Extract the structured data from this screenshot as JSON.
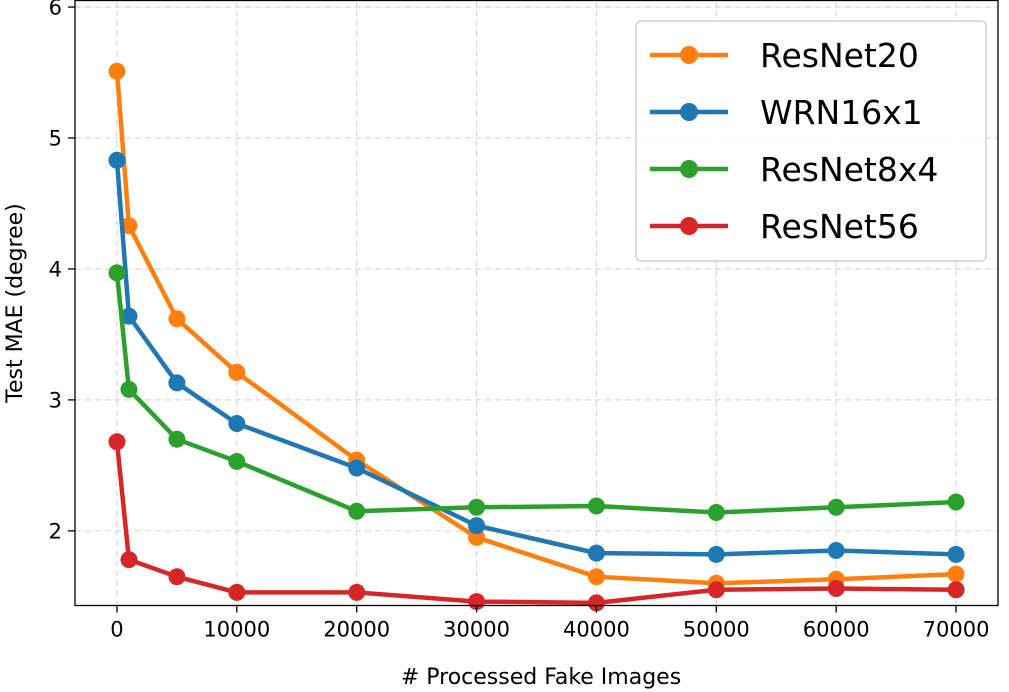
{
  "chart_data": {
    "type": "line",
    "title": "",
    "xlabel": "# Processed Fake Images",
    "ylabel": "Test MAE (degree)",
    "xlim": [
      -3500,
      73500
    ],
    "ylim": [
      1.43,
      6.05
    ],
    "xticks": [
      0,
      10000,
      20000,
      30000,
      40000,
      50000,
      60000,
      70000
    ],
    "yticks": [
      2,
      3,
      4,
      5,
      6
    ],
    "grid": true,
    "legend_position": "top-right",
    "x": [
      0,
      1000,
      5000,
      10000,
      20000,
      30000,
      40000,
      50000,
      60000,
      70000
    ],
    "series": [
      {
        "name": "ResNet20",
        "color": "#ff7f0e",
        "values": [
          5.51,
          4.33,
          3.62,
          3.21,
          2.54,
          1.95,
          1.65,
          1.6,
          1.63,
          1.67
        ]
      },
      {
        "name": "WRN16x1",
        "color": "#1f77b4",
        "values": [
          4.83,
          3.64,
          3.13,
          2.82,
          2.48,
          2.04,
          1.83,
          1.82,
          1.85,
          1.82
        ]
      },
      {
        "name": "ResNet8x4",
        "color": "#2ca02c",
        "values": [
          3.97,
          3.08,
          2.7,
          2.53,
          2.15,
          2.18,
          2.19,
          2.14,
          2.18,
          2.22
        ]
      },
      {
        "name": "ResNet56",
        "color": "#d62728",
        "values": [
          2.68,
          1.78,
          1.65,
          1.53,
          1.53,
          1.46,
          1.45,
          1.55,
          1.56,
          1.55
        ]
      }
    ]
  }
}
